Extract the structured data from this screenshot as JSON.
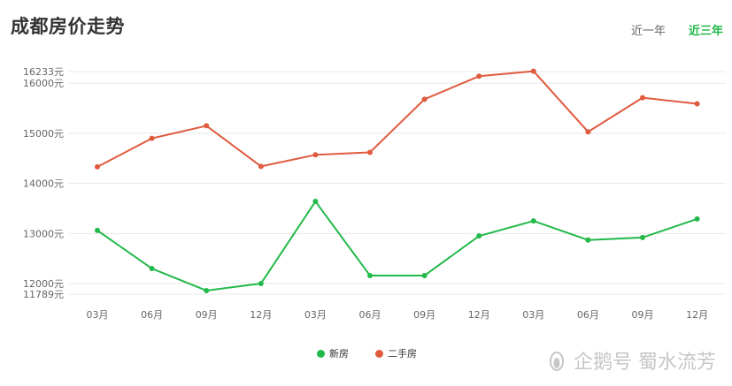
{
  "header": {
    "title": "成都房价走势",
    "tabs": [
      {
        "label": "近一年",
        "active": false
      },
      {
        "label": "近三年",
        "active": true
      }
    ]
  },
  "colors": {
    "new": "#22b94a",
    "second": "#e05a3e",
    "active_tab": "#22b94a"
  },
  "watermark": {
    "text": "企鹅号 蜀水流芳"
  },
  "chart_data": {
    "type": "line",
    "categories": [
      "03月",
      "06月",
      "09月",
      "12月",
      "03月",
      "06月",
      "09月",
      "12月",
      "03月",
      "06月",
      "09月",
      "12月"
    ],
    "y_ticks": [
      {
        "value": 11789,
        "label": "11789元"
      },
      {
        "value": 12000,
        "label": "12000元"
      },
      {
        "value": 13000,
        "label": "13000元"
      },
      {
        "value": 14000,
        "label": "14000元"
      },
      {
        "value": 15000,
        "label": "15000元"
      },
      {
        "value": 16000,
        "label": "16000元"
      },
      {
        "value": 16233,
        "label": "16233元"
      }
    ],
    "ylim": [
      11789,
      16233
    ],
    "grid": true,
    "legend_position": "bottom-center",
    "series": [
      {
        "name": "新房",
        "color": "#22b94a",
        "values": [
          13060,
          12300,
          11860,
          12000,
          13640,
          12160,
          12160,
          12950,
          13250,
          12870,
          12920,
          13290
        ]
      },
      {
        "name": "二手房",
        "color": "#e05a3e",
        "values": [
          14330,
          14900,
          15150,
          14340,
          14570,
          14620,
          15680,
          16140,
          16240,
          15030,
          15710,
          15590
        ]
      }
    ]
  }
}
